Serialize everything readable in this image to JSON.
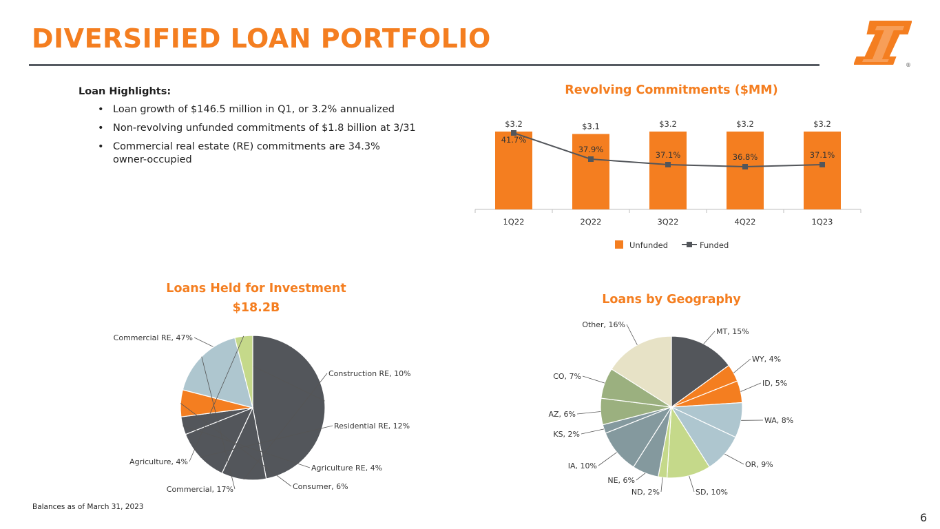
{
  "title": "DIVERSIFIED LOAN PORTFOLIO",
  "highlights": {
    "heading": "Loan Highlights:",
    "bullet_char": "•",
    "items": [
      "Loan growth of $146.5 million in Q1, or 3.2% annualized",
      "Non-revolving unfunded commitments of $1.8 billion at 3/31",
      "Commercial real estate (RE) commitments are 34.3% owner-occupied"
    ]
  },
  "footnote": "Balances as of March 31, 2023",
  "page_number": "6",
  "colors": {
    "accent": "#F47E20",
    "dark": "#53565B",
    "rule": "#555A61"
  },
  "chart_data": [
    {
      "type": "bar",
      "title": "Revolving Commitments ($MM)",
      "categories": [
        "1Q22",
        "2Q22",
        "3Q22",
        "4Q22",
        "1Q23"
      ],
      "series": [
        {
          "name": "Unfunded",
          "kind": "bar",
          "color": "#F47E20",
          "values": [
            3.2,
            3.1,
            3.2,
            3.2,
            3.2
          ],
          "labels": [
            "$3.2",
            "$3.1",
            "$3.2",
            "$3.2",
            "$3.2"
          ]
        },
        {
          "name": "Funded",
          "kind": "line",
          "color": "#53565B",
          "values": [
            41.7,
            37.9,
            37.1,
            36.8,
            37.1
          ],
          "labels": [
            "41.7%",
            "37.9%",
            "37.1%",
            "36.8%",
            "37.1%"
          ]
        }
      ],
      "legend": [
        "Unfunded",
        "Funded"
      ],
      "legend_position": "bottom"
    },
    {
      "type": "pie",
      "title": "Loans Held for Investment",
      "subtitle": "$18.2B",
      "slices": [
        {
          "label": "Commercial RE, 47%",
          "value": 47,
          "color": "#53565B"
        },
        {
          "label": "Construction RE, 10%",
          "value": 10,
          "color": "#53565B"
        },
        {
          "label": "Residential RE, 12%",
          "value": 12,
          "color": "#53565B"
        },
        {
          "label": "Agriculture RE, 4%",
          "value": 4,
          "color": "#53565B"
        },
        {
          "label": "Consumer, 6%",
          "value": 6,
          "color": "#F47E20"
        },
        {
          "label": "Commercial, 17%",
          "value": 17,
          "color": "#AEC6CF"
        },
        {
          "label": "Agriculture, 4%",
          "value": 4,
          "color": "#C5D98A"
        }
      ]
    },
    {
      "type": "pie",
      "title": "Loans by Geography",
      "slices": [
        {
          "label": "MT, 15%",
          "value": 15,
          "color": "#53565B"
        },
        {
          "label": "WY, 4%",
          "value": 4,
          "color": "#F47E20"
        },
        {
          "label": "ID, 5%",
          "value": 5,
          "color": "#F47E20"
        },
        {
          "label": "WA, 8%",
          "value": 8,
          "color": "#AEC6CF"
        },
        {
          "label": "OR, 9%",
          "value": 9,
          "color": "#AEC6CF"
        },
        {
          "label": "SD, 10%",
          "value": 10,
          "color": "#C5D98A"
        },
        {
          "label": "ND, 2%",
          "value": 2,
          "color": "#C5D98A"
        },
        {
          "label": "NE, 6%",
          "value": 6,
          "color": "#84999E"
        },
        {
          "label": "IA, 10%",
          "value": 10,
          "color": "#84999E"
        },
        {
          "label": "KS, 2%",
          "value": 2,
          "color": "#84999E"
        },
        {
          "label": "AZ, 6%",
          "value": 6,
          "color": "#9BB07F"
        },
        {
          "label": "CO, 7%",
          "value": 7,
          "color": "#9BB07F"
        },
        {
          "label": "Other, 16%",
          "value": 16,
          "color": "#E7E2C6"
        }
      ]
    }
  ]
}
